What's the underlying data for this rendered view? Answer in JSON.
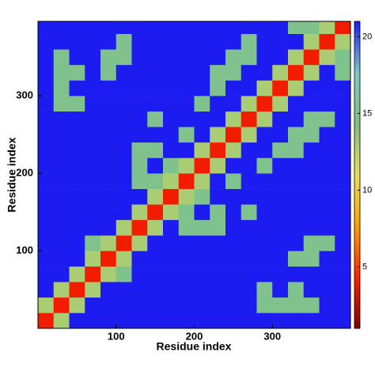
{
  "chart_data": {
    "type": "heatmap",
    "xlabel": "Residue index",
    "ylabel": "Residue index",
    "xbins": [
      0,
      20,
      40,
      60,
      80,
      100,
      120,
      140,
      160,
      180,
      200,
      220,
      240,
      260,
      280,
      300,
      320,
      340,
      360,
      380,
      400
    ],
    "ybins": [
      0,
      20,
      40,
      60,
      80,
      100,
      120,
      140,
      160,
      180,
      200,
      220,
      240,
      260,
      280,
      300,
      320,
      340,
      360,
      380,
      400
    ],
    "z": [
      [
        4,
        13,
        21,
        21,
        21,
        21,
        21,
        21,
        21,
        21,
        21,
        21,
        21,
        21,
        21,
        21,
        21,
        21,
        21,
        21
      ],
      [
        13,
        4,
        13,
        21,
        21,
        21,
        21,
        21,
        21,
        21,
        21,
        21,
        21,
        21,
        15,
        15,
        15,
        15,
        21,
        21
      ],
      [
        21,
        13,
        4,
        13,
        21,
        21,
        21,
        21,
        21,
        21,
        21,
        21,
        21,
        21,
        15,
        21,
        15,
        21,
        21,
        21
      ],
      [
        21,
        21,
        13,
        4,
        13,
        15,
        21,
        21,
        21,
        21,
        21,
        21,
        21,
        21,
        21,
        21,
        21,
        21,
        21,
        21
      ],
      [
        21,
        21,
        21,
        13,
        4,
        13,
        21,
        21,
        21,
        21,
        21,
        21,
        21,
        21,
        21,
        21,
        15,
        15,
        21,
        21
      ],
      [
        21,
        21,
        21,
        15,
        13,
        4,
        13,
        21,
        21,
        21,
        21,
        21,
        21,
        21,
        21,
        21,
        21,
        15,
        15,
        21
      ],
      [
        21,
        21,
        21,
        21,
        21,
        13,
        4,
        13,
        21,
        15,
        15,
        15,
        21,
        21,
        21,
        21,
        21,
        21,
        21,
        21
      ],
      [
        21,
        21,
        21,
        21,
        21,
        21,
        13,
        4,
        13,
        15,
        21,
        15,
        21,
        15,
        21,
        21,
        21,
        21,
        21,
        21
      ],
      [
        21,
        21,
        21,
        21,
        21,
        21,
        21,
        13,
        4,
        13,
        15,
        21,
        21,
        21,
        21,
        21,
        21,
        21,
        21,
        21
      ],
      [
        21,
        21,
        21,
        21,
        21,
        21,
        15,
        15,
        13,
        4,
        13,
        21,
        15,
        21,
        21,
        21,
        21,
        21,
        21,
        21
      ],
      [
        21,
        21,
        21,
        21,
        21,
        21,
        15,
        21,
        15,
        13,
        4,
        13,
        21,
        21,
        15,
        21,
        21,
        21,
        21,
        21
      ],
      [
        21,
        21,
        21,
        21,
        21,
        21,
        15,
        15,
        21,
        21,
        13,
        4,
        13,
        21,
        21,
        15,
        15,
        21,
        21,
        21
      ],
      [
        21,
        21,
        21,
        21,
        21,
        21,
        21,
        21,
        21,
        15,
        21,
        13,
        4,
        13,
        21,
        21,
        15,
        15,
        21,
        21
      ],
      [
        21,
        21,
        21,
        21,
        21,
        21,
        21,
        15,
        21,
        21,
        21,
        21,
        13,
        4,
        13,
        21,
        21,
        15,
        15,
        21
      ],
      [
        21,
        15,
        15,
        21,
        21,
        21,
        21,
        21,
        21,
        21,
        15,
        21,
        21,
        13,
        4,
        13,
        21,
        21,
        21,
        21
      ],
      [
        21,
        15,
        21,
        21,
        21,
        21,
        21,
        21,
        21,
        21,
        21,
        15,
        21,
        21,
        13,
        4,
        13,
        21,
        21,
        21
      ],
      [
        21,
        15,
        15,
        21,
        15,
        21,
        21,
        21,
        21,
        21,
        21,
        15,
        15,
        21,
        21,
        13,
        4,
        13,
        21,
        15
      ],
      [
        21,
        15,
        21,
        21,
        15,
        15,
        21,
        21,
        21,
        21,
        21,
        21,
        15,
        15,
        21,
        21,
        13,
        4,
        13,
        15
      ],
      [
        21,
        21,
        21,
        21,
        21,
        15,
        21,
        21,
        21,
        21,
        21,
        21,
        21,
        15,
        21,
        21,
        21,
        13,
        4,
        13
      ],
      [
        21,
        21,
        21,
        21,
        21,
        21,
        21,
        21,
        21,
        21,
        21,
        21,
        21,
        21,
        21,
        21,
        15,
        15,
        13,
        4
      ]
    ],
    "xlim": [
      0,
      400
    ],
    "ylim": [
      0,
      396
    ],
    "xticks": [
      100,
      200,
      300
    ],
    "yticks": [
      100,
      200,
      300
    ],
    "zlim": [
      1,
      21
    ],
    "zticks": [
      5,
      10,
      15,
      20
    ],
    "colormap": [
      "#7f0000",
      "#ff2000",
      "#ffa000",
      "#e8e060",
      "#80c080",
      "#80c8c8",
      "#1c1cf0"
    ]
  }
}
